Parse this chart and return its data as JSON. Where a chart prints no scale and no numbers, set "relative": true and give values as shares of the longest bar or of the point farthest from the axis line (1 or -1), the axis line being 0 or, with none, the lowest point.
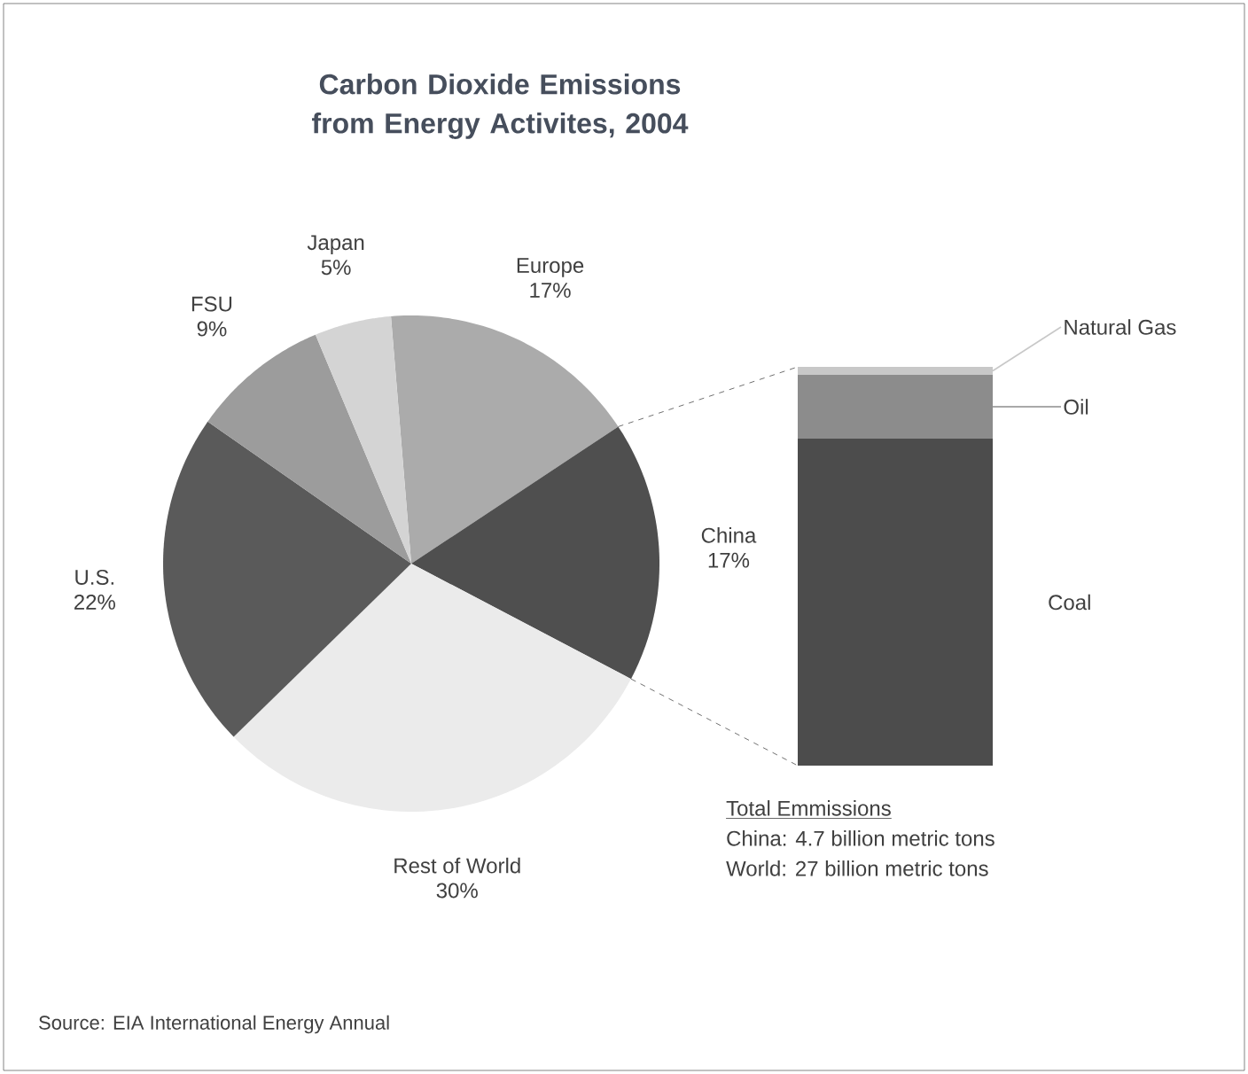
{
  "chart_data": [
    {
      "type": "pie",
      "title": "Carbon Dioxide Emissions from Energy Activites, 2004",
      "categories": [
        "Europe",
        "China",
        "Rest of World",
        "U.S.",
        "FSU",
        "Japan"
      ],
      "values": [
        17,
        17,
        30,
        22,
        9,
        5
      ],
      "value_labels": [
        "17%",
        "17%",
        "30%",
        "22%",
        "9%",
        "5%"
      ],
      "colors": [
        "#ababab",
        "#4f4f4f",
        "#ebebeb",
        "#5a5a5a",
        "#9c9c9c",
        "#d4d4d4"
      ],
      "annotations": [
        "Source: EIA International Energy Annual"
      ]
    },
    {
      "type": "bar",
      "stacked": true,
      "relative": true,
      "categories": [
        null
      ],
      "series": [
        {
          "name": "Coal",
          "color": "#4c4c4c",
          "values": [
            0.82
          ]
        },
        {
          "name": "Oil",
          "color": "#8c8c8c",
          "values": [
            0.16
          ]
        },
        {
          "name": "Natural Gas",
          "color": "#c8c8c8",
          "values": [
            0.02
          ]
        }
      ],
      "annotations": [
        "Total Emmissions",
        "China: 4.7 billion metric tons",
        "World: 27 billion metric tons"
      ]
    }
  ]
}
